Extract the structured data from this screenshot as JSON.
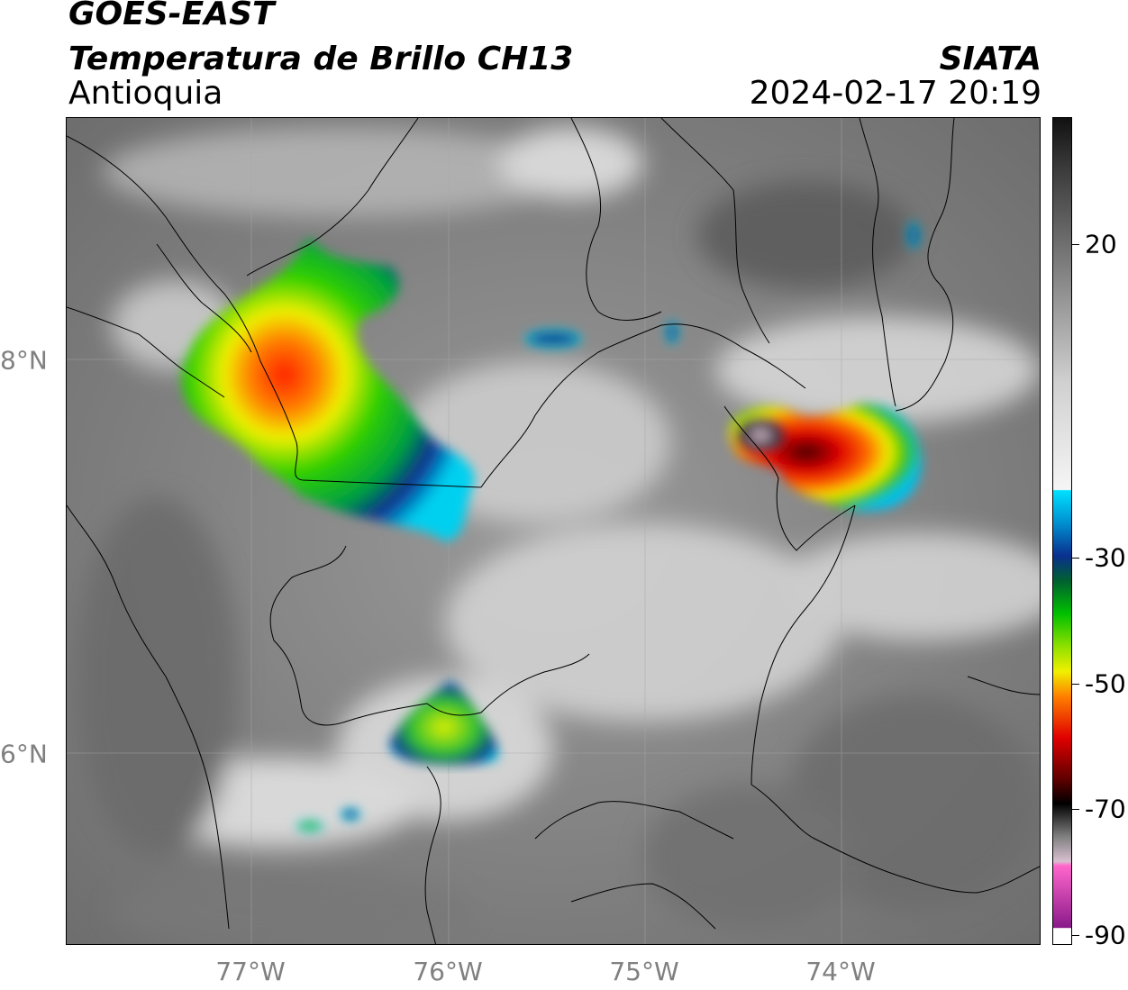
{
  "header": {
    "title": "GOES-EAST",
    "subtitle": "Temperatura de Brillo CH13",
    "region": "Antioquia",
    "organization": "SIATA",
    "datetime": "2024-02-17 20:19"
  },
  "axes": {
    "longitude_labels": [
      "77°W",
      "76°W",
      "75°W",
      "74°W"
    ],
    "latitude_labels": [
      "8°N",
      "6°N"
    ]
  },
  "colorbar": {
    "labels": [
      "20",
      "-30",
      "-50",
      "-70",
      "-90"
    ],
    "colors": {
      "warm_top": "#111111",
      "gray_mid": "#8a8a8a",
      "white": "#f5f5f5",
      "cyan": "#00e0ff",
      "blue": "#0a2f8f",
      "green": "#00c000",
      "yellow": "#f0f000",
      "orange": "#ff8000",
      "red": "#e00000",
      "black": "#000000",
      "pink": "#ff66cc",
      "purple": "#8a1a8a"
    }
  }
}
